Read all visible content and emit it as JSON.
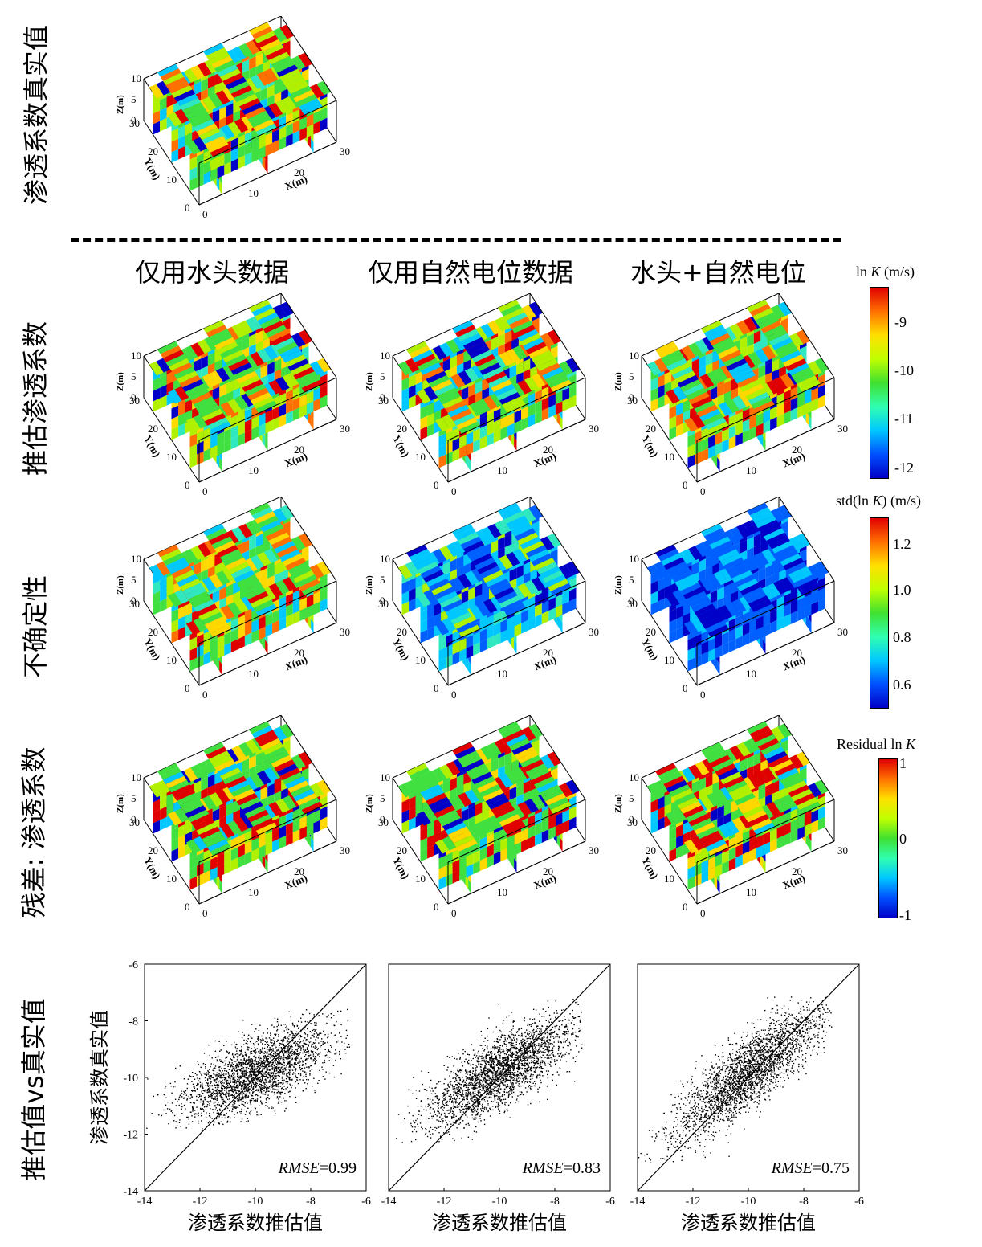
{
  "row_labels": {
    "true_k": "渗透系数真实值",
    "estimated": "推估渗透系数",
    "uncertainty": "不确定性",
    "residual": "残差: 渗透系数",
    "scatter": "推估值vs真实值"
  },
  "column_titles": [
    "仅用水头数据",
    "仅用自然电位数据",
    "水头+自然电位"
  ],
  "axis_labels_3d": {
    "x": "X(m)",
    "y": "Y(m)",
    "z": "Z(m)",
    "x_ticks": [
      "0",
      "10",
      "20",
      "30"
    ],
    "y_ticks": [
      "0",
      "10",
      "20",
      "30"
    ],
    "z_ticks": [
      "0",
      "5",
      "10"
    ]
  },
  "colorbars": [
    {
      "id": "lnk",
      "title_pre": "ln ",
      "title_var": "K",
      "title_post": " (m/s)",
      "ticks": [
        "-9",
        "-10",
        "-11",
        "-12"
      ],
      "range": [
        -12.2,
        -8.4
      ],
      "colormap": "jet"
    },
    {
      "id": "std",
      "title_pre": "std(ln ",
      "title_var": "K",
      "title_post": ") (m/s)",
      "ticks": [
        "1.2",
        "1.0",
        "0.8",
        "0.6"
      ],
      "range": [
        0.5,
        1.3
      ],
      "colormap": "jet"
    },
    {
      "id": "resid",
      "title_pre": "Residual ln ",
      "title_var": "K",
      "title_post": "",
      "ticks": [
        "1",
        "0",
        "-1"
      ],
      "range": [
        -1,
        1
      ],
      "colormap": "jet"
    }
  ],
  "chart_data": [
    {
      "type": "scatter",
      "title": "仅用水头数据",
      "xlabel": "渗透系数推估值",
      "ylabel": "渗透系数真实值",
      "xlim": [
        -14,
        -6
      ],
      "ylim": [
        -14,
        -6
      ],
      "x_ticks": [
        -14,
        -12,
        -10,
        -8,
        -6
      ],
      "y_ticks": [
        -14,
        -12,
        -10,
        -8,
        -6
      ],
      "reference_line": "y = x",
      "rmse_label": "RMSE",
      "rmse_value": "=0.99",
      "approx_cloud": {
        "x_range": [
          -14,
          -6.6
        ],
        "y_range": [
          -11.8,
          -7.5
        ],
        "n_points": 5000,
        "slope": 0.42,
        "center": [
          -10,
          -9.8
        ]
      }
    },
    {
      "type": "scatter",
      "title": "仅用自然电位数据",
      "xlabel": "渗透系数推估值",
      "ylabel": "",
      "xlim": [
        -14,
        -6
      ],
      "ylim": [
        -14,
        -6
      ],
      "x_ticks": [
        -14,
        -12,
        -10,
        -8,
        -6
      ],
      "y_ticks": [],
      "reference_line": "y = x",
      "rmse_label": "RMSE",
      "rmse_value": "=0.83",
      "approx_cloud": {
        "x_range": [
          -14,
          -7
        ],
        "y_range": [
          -12.3,
          -7.1
        ],
        "n_points": 5000,
        "slope": 0.55,
        "center": [
          -10,
          -9.8
        ]
      }
    },
    {
      "type": "scatter",
      "title": "水头+自然电位",
      "xlabel": "渗透系数推估值",
      "ylabel": "",
      "xlim": [
        -14,
        -6
      ],
      "ylim": [
        -14,
        -6
      ],
      "x_ticks": [
        -14,
        -12,
        -10,
        -8,
        -6
      ],
      "y_ticks": [],
      "reference_line": "y = x",
      "rmse_label": "RMSE",
      "rmse_value": "=0.75",
      "approx_cloud": {
        "x_range": [
          -14,
          -7
        ],
        "y_range": [
          -13,
          -7.1
        ],
        "n_points": 5000,
        "slope": 0.72,
        "center": [
          -10,
          -9.8
        ]
      }
    }
  ]
}
